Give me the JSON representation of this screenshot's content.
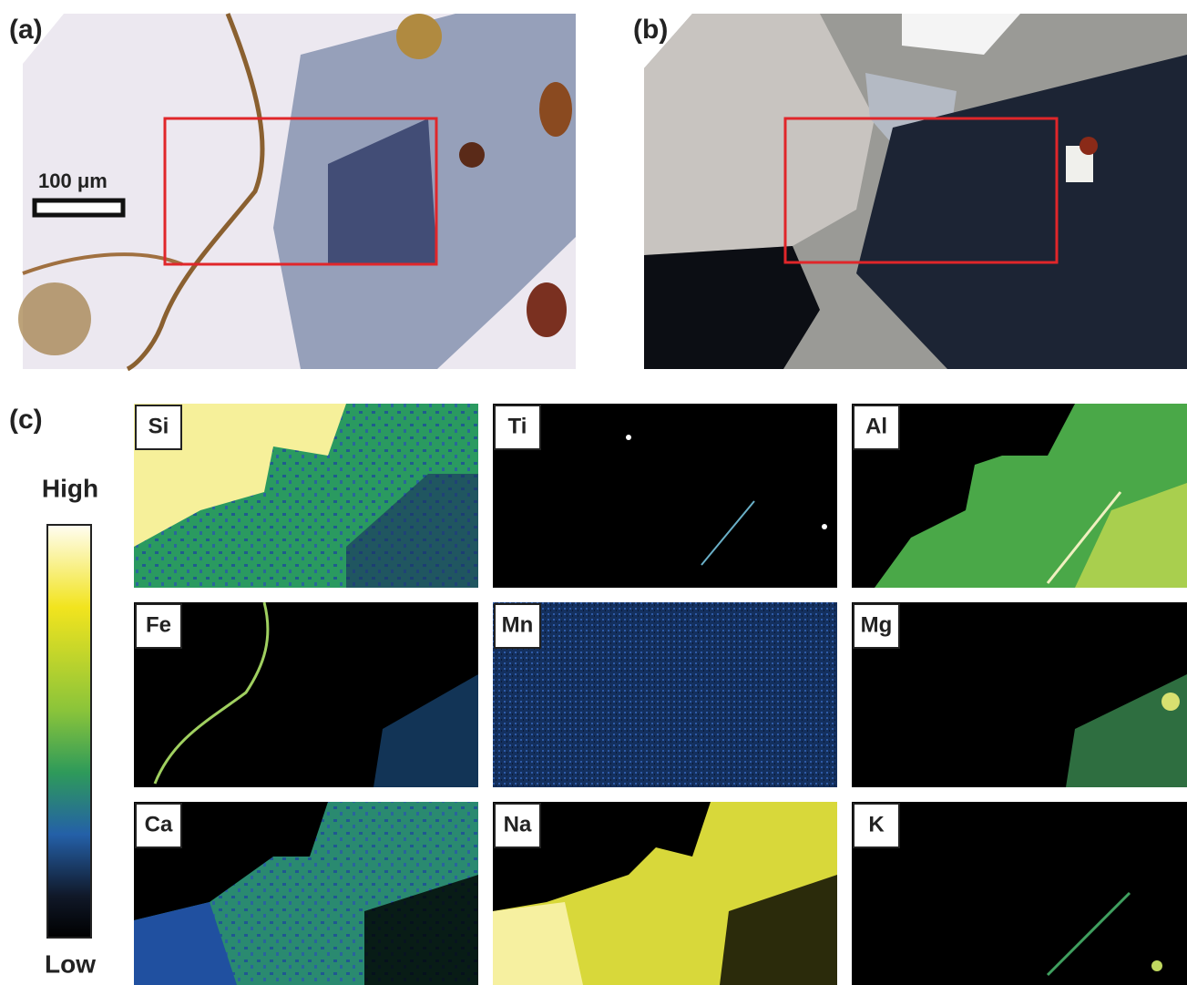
{
  "panel_a": {
    "label": "(a)",
    "scale_bar": "100 μm"
  },
  "panel_b": {
    "label": "(b)"
  },
  "panel_c": {
    "label": "(c)",
    "colorbar": {
      "high": "High",
      "low": "Low"
    },
    "maps": [
      "Si",
      "Ti",
      "Al",
      "Fe",
      "Mn",
      "Mg",
      "Ca",
      "Na",
      "K"
    ]
  }
}
